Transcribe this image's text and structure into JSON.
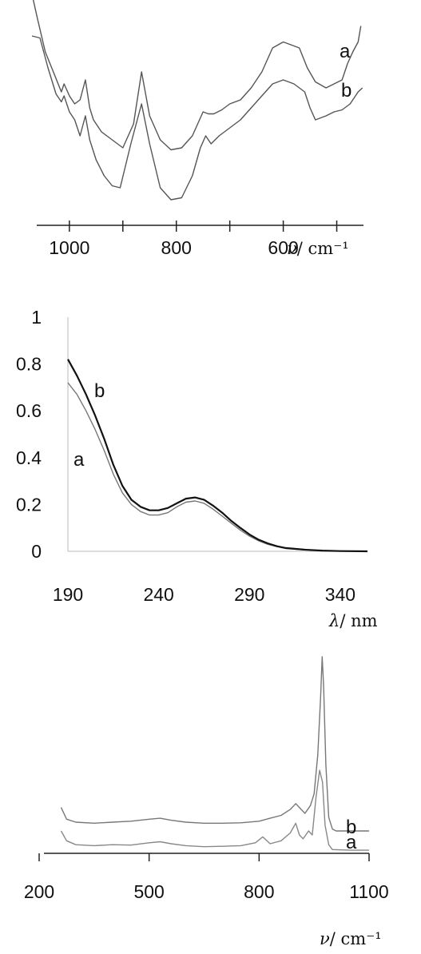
{
  "chart_data": [
    {
      "type": "line",
      "title": "",
      "xlabel_symbol": "ν",
      "xlabel_unit": "/ cm⁻¹",
      "x_reversed": true,
      "xlim": [
        1070,
        450
      ],
      "ylim": [
        0,
        1
      ],
      "y_axis_shown": false,
      "grid": false,
      "xticks": [
        1000,
        800,
        600
      ],
      "xtick_labels": [
        "1000",
        "800",
        "600"
      ],
      "series": [
        {
          "name": "a",
          "color": "#555555",
          "points": [
            [
              1070,
              1.05
            ],
            [
              1060,
              0.93
            ],
            [
              1045,
              0.76
            ],
            [
              1030,
              0.66
            ],
            [
              1015,
              0.56
            ],
            [
              1010,
              0.6
            ],
            [
              1000,
              0.54
            ],
            [
              990,
              0.5
            ],
            [
              980,
              0.52
            ],
            [
              970,
              0.62
            ],
            [
              962,
              0.48
            ],
            [
              955,
              0.42
            ],
            [
              940,
              0.36
            ],
            [
              920,
              0.32
            ],
            [
              900,
              0.28
            ],
            [
              880,
              0.4
            ],
            [
              865,
              0.66
            ],
            [
              850,
              0.44
            ],
            [
              830,
              0.32
            ],
            [
              810,
              0.27
            ],
            [
              790,
              0.28
            ],
            [
              770,
              0.34
            ],
            [
              760,
              0.4
            ],
            [
              750,
              0.46
            ],
            [
              740,
              0.45
            ],
            [
              730,
              0.45
            ],
            [
              715,
              0.47
            ],
            [
              700,
              0.5
            ],
            [
              680,
              0.52
            ],
            [
              660,
              0.58
            ],
            [
              640,
              0.66
            ],
            [
              620,
              0.78
            ],
            [
              600,
              0.81
            ],
            [
              590,
              0.8
            ],
            [
              570,
              0.78
            ],
            [
              555,
              0.68
            ],
            [
              540,
              0.61
            ],
            [
              520,
              0.58
            ],
            [
              505,
              0.6
            ],
            [
              490,
              0.62
            ],
            [
              480,
              0.7
            ],
            [
              470,
              0.76
            ],
            [
              460,
              0.81
            ],
            [
              455,
              0.89
            ]
          ]
        },
        {
          "name": "b",
          "color": "#555555",
          "points": [
            [
              1070,
              0.84
            ],
            [
              1055,
              0.83
            ],
            [
              1040,
              0.68
            ],
            [
              1025,
              0.55
            ],
            [
              1015,
              0.51
            ],
            [
              1010,
              0.54
            ],
            [
              1000,
              0.46
            ],
            [
              990,
              0.42
            ],
            [
              980,
              0.34
            ],
            [
              970,
              0.44
            ],
            [
              962,
              0.32
            ],
            [
              950,
              0.22
            ],
            [
              935,
              0.14
            ],
            [
              920,
              0.09
            ],
            [
              905,
              0.08
            ],
            [
              885,
              0.3
            ],
            [
              865,
              0.5
            ],
            [
              850,
              0.3
            ],
            [
              830,
              0.08
            ],
            [
              810,
              0.02
            ],
            [
              790,
              0.03
            ],
            [
              770,
              0.14
            ],
            [
              755,
              0.28
            ],
            [
              745,
              0.34
            ],
            [
              735,
              0.3
            ],
            [
              720,
              0.34
            ],
            [
              700,
              0.38
            ],
            [
              680,
              0.42
            ],
            [
              660,
              0.48
            ],
            [
              640,
              0.54
            ],
            [
              620,
              0.6
            ],
            [
              600,
              0.62
            ],
            [
              580,
              0.6
            ],
            [
              560,
              0.56
            ],
            [
              550,
              0.48
            ],
            [
              540,
              0.42
            ],
            [
              520,
              0.44
            ],
            [
              505,
              0.46
            ],
            [
              490,
              0.47
            ],
            [
              475,
              0.5
            ],
            [
              460,
              0.56
            ],
            [
              452,
              0.58
            ]
          ]
        }
      ]
    },
    {
      "type": "line",
      "title": "",
      "xlabel_symbol": "λ",
      "xlabel_unit": "/ nm",
      "xlim": [
        190,
        355
      ],
      "ylim": [
        0,
        1
      ],
      "grid": false,
      "xticks": [
        190,
        240,
        290,
        340
      ],
      "xtick_labels": [
        "190",
        "240",
        "290",
        "340"
      ],
      "yticks": [
        0,
        0.2,
        0.4,
        0.6,
        0.8,
        1
      ],
      "ytick_labels": [
        "0",
        "0.2",
        "0.4",
        "0.6",
        "0.8",
        "1"
      ],
      "series": [
        {
          "name": "a",
          "color": "#777777",
          "points": [
            [
              190,
              0.72
            ],
            [
              195,
              0.67
            ],
            [
              200,
              0.6
            ],
            [
              205,
              0.52
            ],
            [
              210,
              0.43
            ],
            [
              215,
              0.33
            ],
            [
              220,
              0.25
            ],
            [
              225,
              0.2
            ],
            [
              230,
              0.17
            ],
            [
              235,
              0.155
            ],
            [
              240,
              0.155
            ],
            [
              245,
              0.165
            ],
            [
              250,
              0.19
            ],
            [
              255,
              0.21
            ],
            [
              260,
              0.215
            ],
            [
              265,
              0.205
            ],
            [
              270,
              0.18
            ],
            [
              275,
              0.15
            ],
            [
              280,
              0.12
            ],
            [
              285,
              0.09
            ],
            [
              290,
              0.065
            ],
            [
              295,
              0.045
            ],
            [
              300,
              0.03
            ],
            [
              305,
              0.02
            ],
            [
              310,
              0.012
            ],
            [
              320,
              0.006
            ],
            [
              330,
              0.003
            ],
            [
              340,
              0.001
            ],
            [
              355,
              0
            ]
          ]
        },
        {
          "name": "b",
          "color": "#111111",
          "points": [
            [
              190,
              0.82
            ],
            [
              195,
              0.75
            ],
            [
              200,
              0.67
            ],
            [
              205,
              0.58
            ],
            [
              210,
              0.48
            ],
            [
              215,
              0.37
            ],
            [
              220,
              0.28
            ],
            [
              225,
              0.22
            ],
            [
              230,
              0.19
            ],
            [
              235,
              0.175
            ],
            [
              240,
              0.175
            ],
            [
              245,
              0.185
            ],
            [
              250,
              0.205
            ],
            [
              255,
              0.225
            ],
            [
              260,
              0.23
            ],
            [
              265,
              0.22
            ],
            [
              270,
              0.195
            ],
            [
              275,
              0.165
            ],
            [
              280,
              0.13
            ],
            [
              285,
              0.1
            ],
            [
              290,
              0.072
            ],
            [
              295,
              0.05
            ],
            [
              300,
              0.034
            ],
            [
              305,
              0.022
            ],
            [
              310,
              0.014
            ],
            [
              320,
              0.007
            ],
            [
              330,
              0.003
            ],
            [
              340,
              0.001
            ],
            [
              355,
              0
            ]
          ]
        }
      ]
    },
    {
      "type": "line",
      "title": "",
      "xlabel_symbol": "ν",
      "xlabel_unit": "/ cm⁻¹",
      "xlim": [
        200,
        1100
      ],
      "ylim": [
        0,
        1
      ],
      "y_axis_shown": false,
      "grid": false,
      "xticks": [
        200,
        500,
        800,
        1100
      ],
      "xtick_labels": [
        "200",
        "500",
        "800",
        "1100"
      ],
      "series": [
        {
          "name": "a",
          "color": "#888888",
          "points": [
            [
              260,
              0.11
            ],
            [
              275,
              0.06
            ],
            [
              300,
              0.04
            ],
            [
              350,
              0.035
            ],
            [
              400,
              0.04
            ],
            [
              450,
              0.038
            ],
            [
              500,
              0.05
            ],
            [
              530,
              0.055
            ],
            [
              560,
              0.045
            ],
            [
              600,
              0.035
            ],
            [
              650,
              0.03
            ],
            [
              700,
              0.032
            ],
            [
              750,
              0.035
            ],
            [
              790,
              0.05
            ],
            [
              810,
              0.08
            ],
            [
              830,
              0.045
            ],
            [
              860,
              0.06
            ],
            [
              885,
              0.1
            ],
            [
              900,
              0.15
            ],
            [
              910,
              0.09
            ],
            [
              920,
              0.07
            ],
            [
              935,
              0.11
            ],
            [
              945,
              0.09
            ],
            [
              955,
              0.28
            ],
            [
              965,
              0.42
            ],
            [
              973,
              0.36
            ],
            [
              980,
              0.14
            ],
            [
              990,
              0.04
            ],
            [
              1000,
              0.015
            ],
            [
              1050,
              0.012
            ],
            [
              1100,
              0.012
            ]
          ]
        },
        {
          "name": "b",
          "color": "#777777",
          "points": [
            [
              260,
              0.23
            ],
            [
              275,
              0.17
            ],
            [
              300,
              0.155
            ],
            [
              350,
              0.15
            ],
            [
              400,
              0.155
            ],
            [
              450,
              0.16
            ],
            [
              500,
              0.17
            ],
            [
              530,
              0.175
            ],
            [
              560,
              0.165
            ],
            [
              600,
              0.155
            ],
            [
              650,
              0.15
            ],
            [
              700,
              0.15
            ],
            [
              750,
              0.152
            ],
            [
              800,
              0.16
            ],
            [
              830,
              0.175
            ],
            [
              860,
              0.19
            ],
            [
              885,
              0.22
            ],
            [
              900,
              0.25
            ],
            [
              915,
              0.22
            ],
            [
              925,
              0.2
            ],
            [
              940,
              0.24
            ],
            [
              950,
              0.3
            ],
            [
              960,
              0.5
            ],
            [
              968,
              0.8
            ],
            [
              972,
              1.0
            ],
            [
              976,
              0.85
            ],
            [
              982,
              0.45
            ],
            [
              990,
              0.18
            ],
            [
              1000,
              0.12
            ],
            [
              1010,
              0.11
            ],
            [
              1050,
              0.11
            ],
            [
              1100,
              0.11
            ]
          ]
        }
      ]
    }
  ]
}
